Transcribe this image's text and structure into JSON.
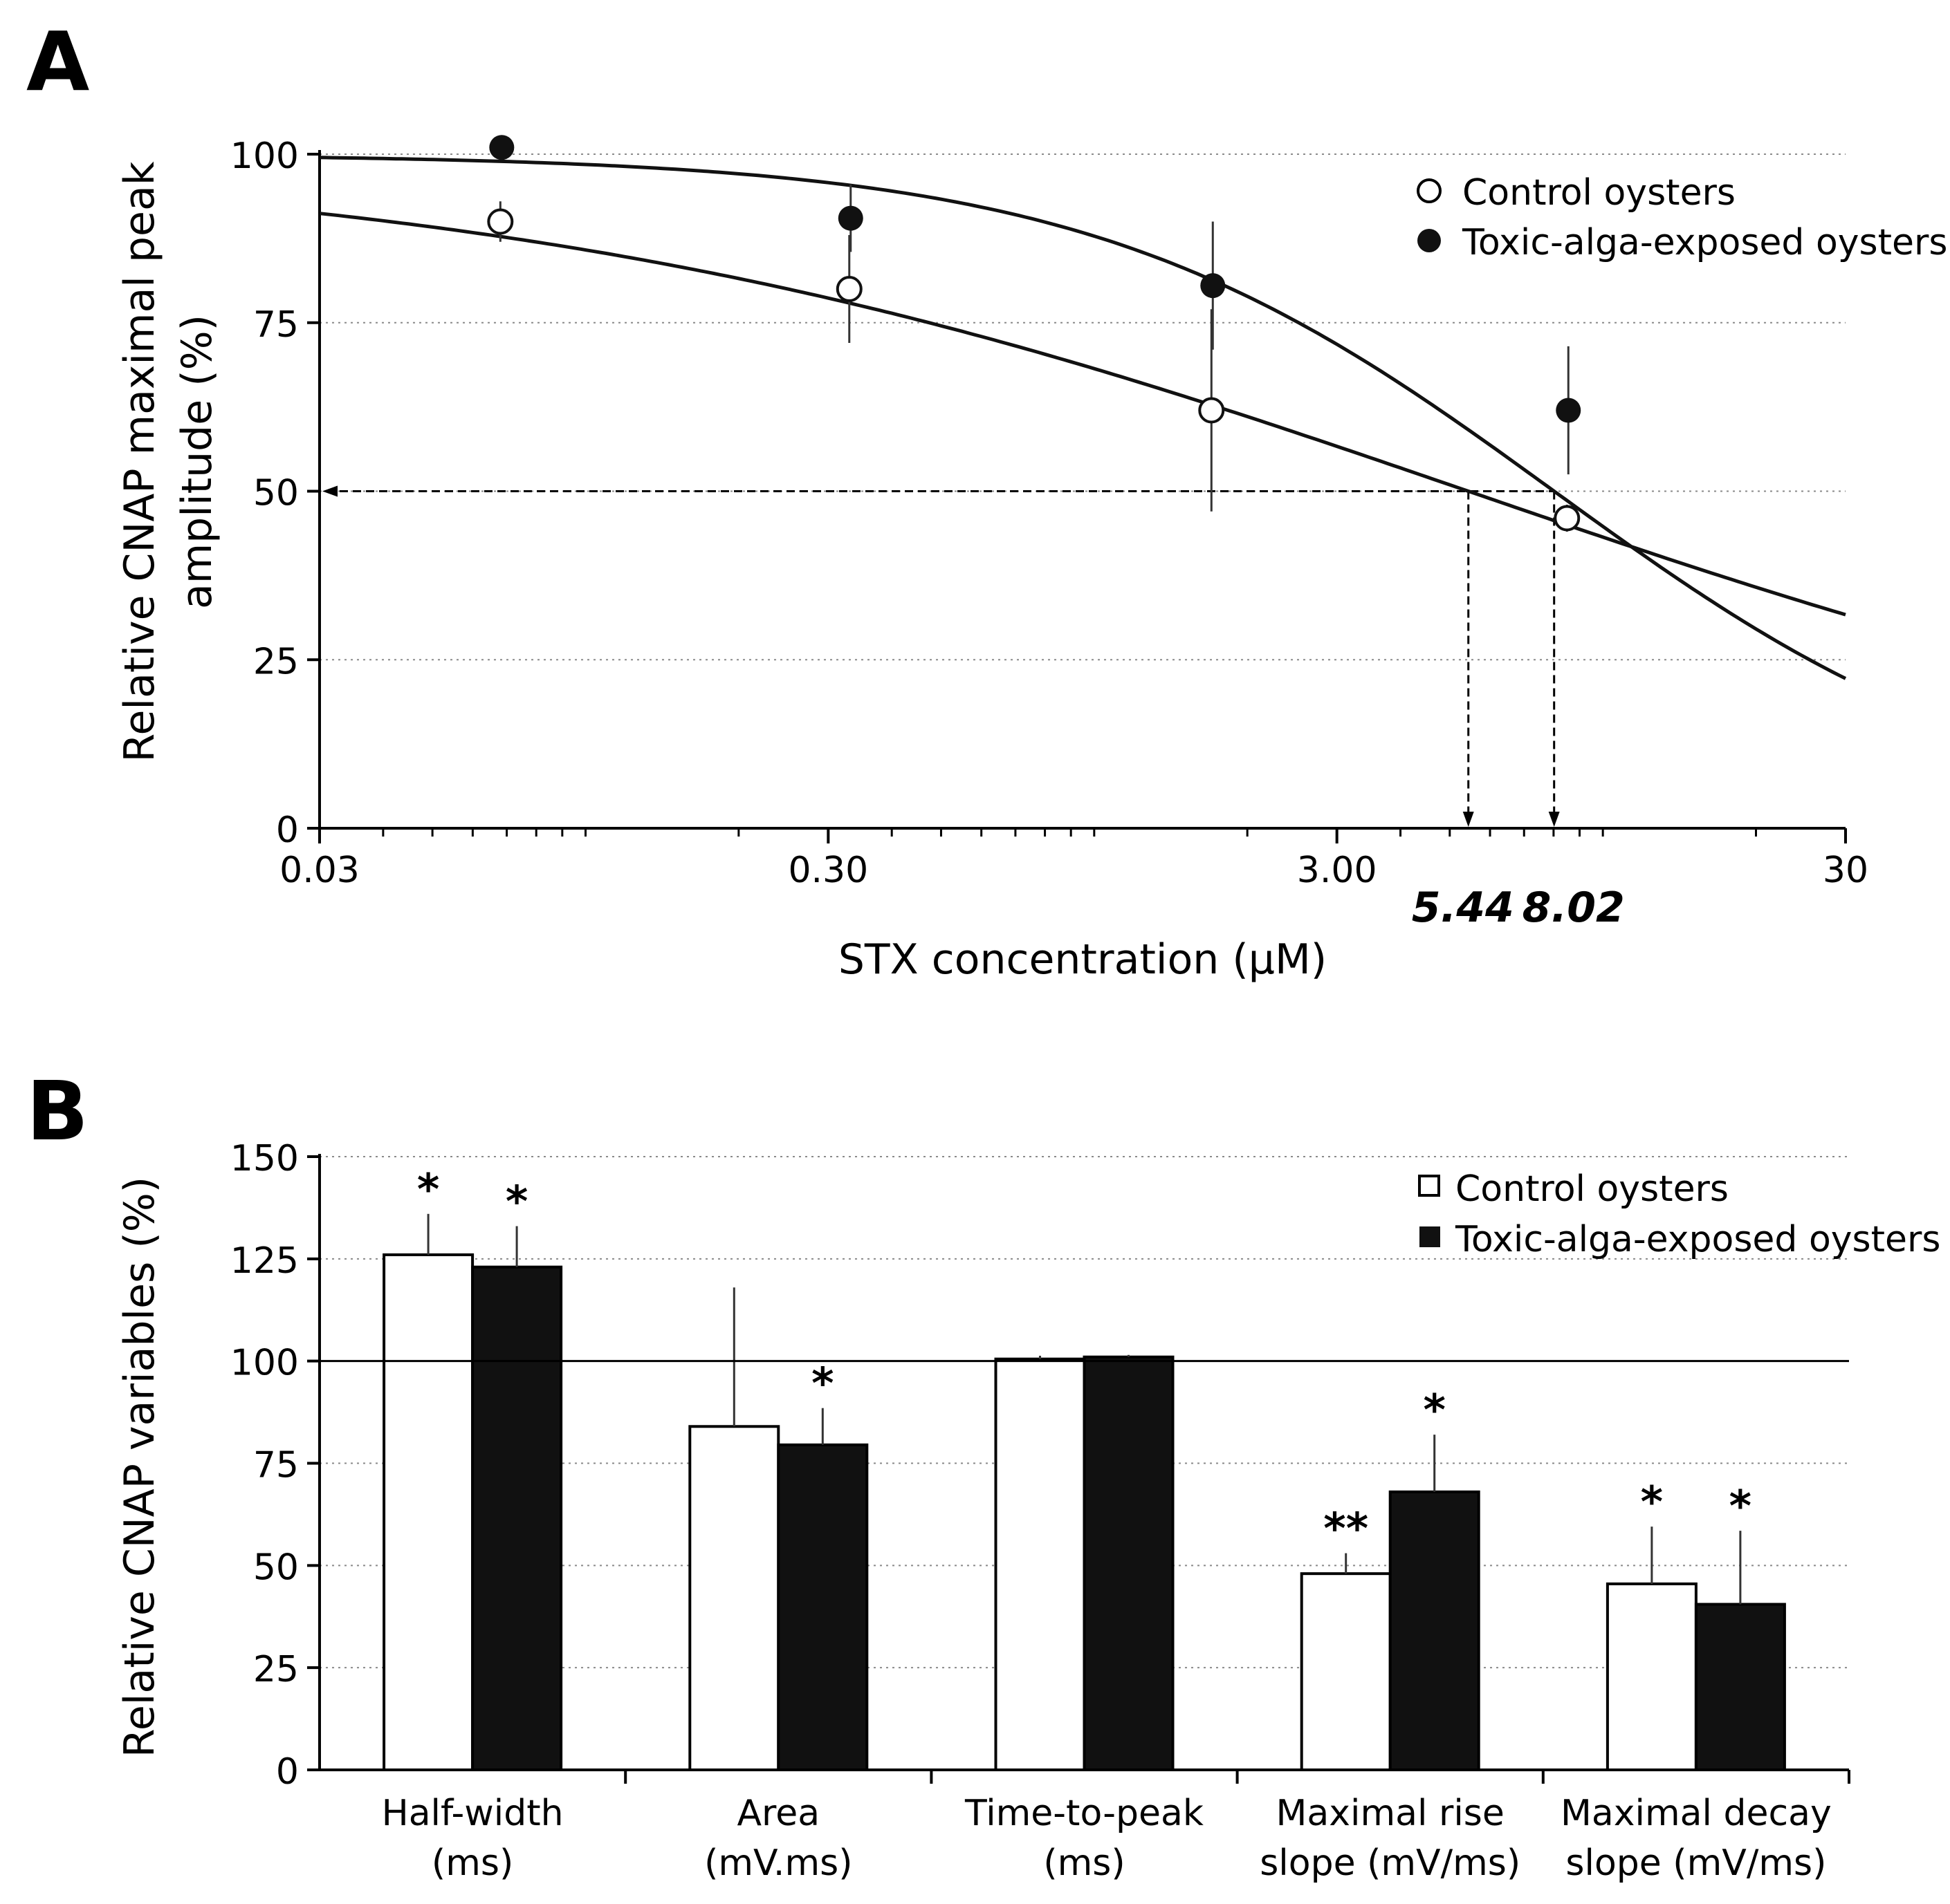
{
  "chart_data": [
    {
      "panel_label": "A",
      "type": "scatter",
      "xscale": "log",
      "xlim": [
        0.03,
        30
      ],
      "ylim": [
        0,
        100
      ],
      "xticks": [
        {
          "value": 0.03,
          "label": "0.03"
        },
        {
          "value": 0.3,
          "label": "0.30"
        },
        {
          "value": 3,
          "label": "3.00"
        },
        {
          "value": 30,
          "label": "30"
        }
      ],
      "yticks": [
        {
          "value": 0,
          "label": "0"
        },
        {
          "value": 25,
          "label": "25"
        },
        {
          "value": 50,
          "label": "50"
        },
        {
          "value": 75,
          "label": "75"
        },
        {
          "value": 100,
          "label": "100"
        }
      ],
      "xlabel": "STX concentration (µM)",
      "ylabel": [
        "Relative CNAP maximal peak",
        "amplitude (%)"
      ],
      "legend_position": "top-right",
      "series": [
        {
          "name": "Control oysters",
          "marker": "open-circle",
          "points": [
            {
              "x": 0.068,
              "y": 90,
              "err": 3
            },
            {
              "x": 0.33,
              "y": 80,
              "err": 8
            },
            {
              "x": 1.7,
              "y": 62,
              "err": 15
            },
            {
              "x": 8.5,
              "y": 46,
              "err": 2
            }
          ],
          "fit": {
            "ic50": 5.44,
            "hill": 0.45
          }
        },
        {
          "name": "Toxic-alga-exposed oysters",
          "marker": "filled-circle",
          "points": [
            {
              "x": 0.068,
              "y": 101,
              "err": 0
            },
            {
              "x": 0.33,
              "y": 90.5,
              "err": 5
            },
            {
              "x": 1.7,
              "y": 80.5,
              "err": 9.5
            },
            {
              "x": 8.5,
              "y": 62,
              "err": 9.5
            }
          ],
          "fit": {
            "ic50": 8.02,
            "hill": 0.95
          }
        }
      ],
      "annotations": [
        {
          "x": 5.44,
          "label": "5.44"
        },
        {
          "x": 8.02,
          "label": "8.02"
        }
      ],
      "reference_y": 50
    },
    {
      "panel_label": "B",
      "type": "bar",
      "ylim": [
        0,
        150
      ],
      "yticks": [
        {
          "value": 0,
          "label": "0"
        },
        {
          "value": 25,
          "label": "25"
        },
        {
          "value": 50,
          "label": "50"
        },
        {
          "value": 75,
          "label": "75"
        },
        {
          "value": 100,
          "label": "100"
        },
        {
          "value": 125,
          "label": "125"
        },
        {
          "value": 150,
          "label": "150"
        }
      ],
      "ylabel": "Relative CNAP variables (%)",
      "reference_y": 100,
      "legend_position": "top-right",
      "categories": [
        [
          "Half-width",
          "(ms)"
        ],
        [
          "Area",
          "(mV.ms)"
        ],
        [
          "Time-to-peak",
          "(ms)"
        ],
        [
          "Maximal rise",
          "slope (mV/ms)"
        ],
        [
          "Maximal decay",
          "slope (mV/ms)"
        ]
      ],
      "series": [
        {
          "name": "Control oysters",
          "fill": "#ffffff",
          "values": [
            126,
            84,
            100.5,
            48,
            45.5
          ],
          "err": [
            10,
            34,
            0.8,
            5,
            14
          ],
          "sig": [
            "*",
            "",
            "",
            "**",
            "*"
          ]
        },
        {
          "name": "Toxic-alga-exposed oysters",
          "fill": "#111111",
          "values": [
            123,
            79.5,
            101,
            68,
            40.5
          ],
          "err": [
            10,
            9,
            0.5,
            14,
            18
          ],
          "sig": [
            "*",
            "*",
            "",
            "*",
            "*"
          ]
        }
      ]
    }
  ]
}
